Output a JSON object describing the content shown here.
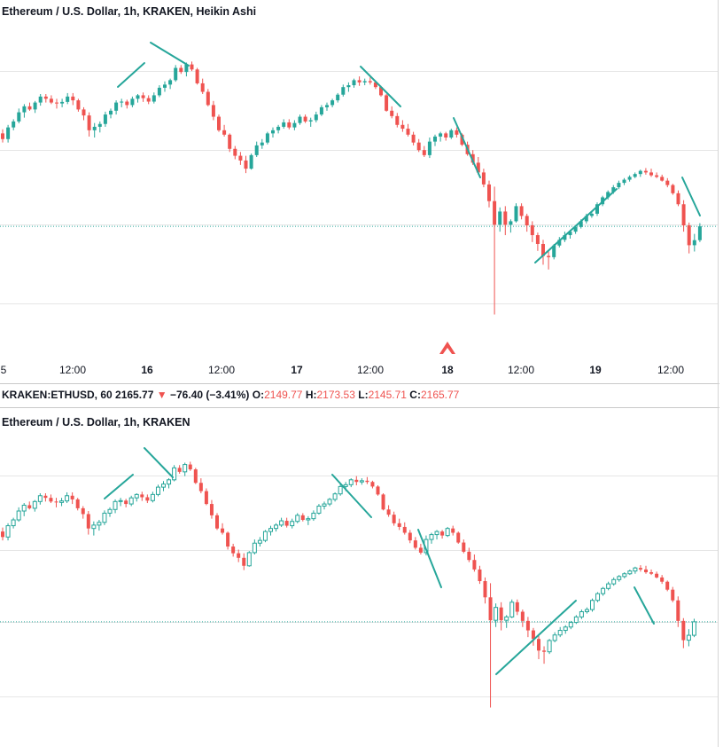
{
  "top_title": "Ethereum / U.S. Dollar, 1h, KRAKEN, Heikin Ashi",
  "bottom_title": "Ethereum / U.S. Dollar, 1h, KRAKEN",
  "ohlc": {
    "symbol": "KRAKEN:ETHUSD, 60",
    "last": "2165.77",
    "arrow": "▼",
    "change": "−76.40 (−3.41%)",
    "o_label": "O:",
    "o": "2149.77",
    "h_label": "H:",
    "h": "2173.53",
    "l_label": "L:",
    "l": "2145.71",
    "c_label": "C:",
    "c": "2165.77"
  },
  "time_axis": [
    {
      "label": "5",
      "bold": false
    },
    {
      "label": "12:00",
      "bold": false
    },
    {
      "label": "16",
      "bold": true
    },
    {
      "label": "12:00",
      "bold": false
    },
    {
      "label": "17",
      "bold": true
    },
    {
      "label": "12:00",
      "bold": false
    },
    {
      "label": "18",
      "bold": true
    },
    {
      "label": "12:00",
      "bold": false
    },
    {
      "label": "19",
      "bold": true
    },
    {
      "label": "12:00",
      "bold": false
    }
  ],
  "colors": {
    "up_top": "#26a69a",
    "down": "#ef5350",
    "up_bottom_fill": "#ffffff",
    "up_bottom_stroke": "#26a69a",
    "trend_line": "#26a69a",
    "grid": "#e6e6e6",
    "price_line": "#26a69a",
    "marker": "#ef5350"
  },
  "chart_data": [
    {
      "type": "candlestick",
      "title": "Ethereum / U.S. Dollar, 1h, KRAKEN, Heikin Ashi",
      "y_axis": "price (relative, no scale printed)",
      "ylim": [
        0,
        100
      ],
      "x_axis_ticks": [
        "5",
        "12:00",
        "16",
        "12:00",
        "17",
        "12:00",
        "18",
        "12:00",
        "19",
        "12:00"
      ],
      "candles_ohlc": [
        [
          67.5,
          68.8,
          64.6,
          65.7
        ],
        [
          65.7,
          70.2,
          64.6,
          69.4
        ],
        [
          69.4,
          72.0,
          68.5,
          71.3
        ],
        [
          71.3,
          75.4,
          70.7,
          74.2
        ],
        [
          74.2,
          76.8,
          72.5,
          76.1
        ],
        [
          76.1,
          77.3,
          74.7,
          75.1
        ],
        [
          75.1,
          77.8,
          74.0,
          77.3
        ],
        [
          77.3,
          80.0,
          76.3,
          79.2
        ],
        [
          79.2,
          80.0,
          77.3,
          78.5
        ],
        [
          78.5,
          79.6,
          76.8,
          77.3
        ],
        [
          77.3,
          78.5,
          75.4,
          77.0
        ],
        [
          77.0,
          78.5,
          75.8,
          77.5
        ],
        [
          77.5,
          80.3,
          76.8,
          79.2
        ],
        [
          79.2,
          80.3,
          76.5,
          78.0
        ],
        [
          78.0,
          78.5,
          74.4,
          75.1
        ],
        [
          75.1,
          75.8,
          71.7,
          73.2
        ],
        [
          73.2,
          74.2,
          66.5,
          68.5
        ],
        [
          68.5,
          70.8,
          66.2,
          69.6
        ],
        [
          69.6,
          71.3,
          67.8,
          70.5
        ],
        [
          70.5,
          74.4,
          69.6,
          73.5
        ],
        [
          73.5,
          75.4,
          72.3,
          74.7
        ],
        [
          74.7,
          78.0,
          73.5,
          77.3
        ],
        [
          77.3,
          78.5,
          75.8,
          77.6
        ],
        [
          77.6,
          78.2,
          75.4,
          76.5
        ],
        [
          76.5,
          79.2,
          75.8,
          78.5
        ],
        [
          78.5,
          80.0,
          77.3,
          79.6
        ],
        [
          79.6,
          80.5,
          77.5,
          78.7
        ],
        [
          78.7,
          79.6,
          76.8,
          77.6
        ],
        [
          77.6,
          80.5,
          77.0,
          79.6
        ],
        [
          79.6,
          82.8,
          79.0,
          82.0
        ],
        [
          82.0,
          84.0,
          80.7,
          83.0
        ],
        [
          83.0,
          84.9,
          81.6,
          84.4
        ],
        [
          84.4,
          89.2,
          83.9,
          88.3
        ],
        [
          88.3,
          89.2,
          86.4,
          87.0
        ],
        [
          87.0,
          90.0,
          85.6,
          89.4
        ],
        [
          89.4,
          90.3,
          87.3,
          87.8
        ],
        [
          87.8,
          88.3,
          83.0,
          83.4
        ],
        [
          83.4,
          84.9,
          80.0,
          80.7
        ],
        [
          80.7,
          81.6,
          76.1,
          76.5
        ],
        [
          76.5,
          77.8,
          71.7,
          72.8
        ],
        [
          72.8,
          73.5,
          68.0,
          68.5
        ],
        [
          68.5,
          70.2,
          66.5,
          67.1
        ],
        [
          67.1,
          67.5,
          61.6,
          62.6
        ],
        [
          62.6,
          63.5,
          59.3,
          60.4
        ],
        [
          60.4,
          61.6,
          57.5,
          58.9
        ],
        [
          58.9,
          60.4,
          54.9,
          56.3
        ],
        [
          56.3,
          61.1,
          56.0,
          60.6
        ],
        [
          60.6,
          64.9,
          60.0,
          63.7
        ],
        [
          63.7,
          65.7,
          62.6,
          64.6
        ],
        [
          64.6,
          68.0,
          64.0,
          67.5
        ],
        [
          67.5,
          69.4,
          66.2,
          68.5
        ],
        [
          68.5,
          70.2,
          67.5,
          69.6
        ],
        [
          69.6,
          72.0,
          69.0,
          71.0
        ],
        [
          71.0,
          72.0,
          68.8,
          69.4
        ],
        [
          69.4,
          71.7,
          68.5,
          70.8
        ],
        [
          70.8,
          73.5,
          70.2,
          72.8
        ],
        [
          72.8,
          73.5,
          70.8,
          71.3
        ],
        [
          71.3,
          72.5,
          69.6,
          71.7
        ],
        [
          71.7,
          74.4,
          71.0,
          73.5
        ],
        [
          73.5,
          76.5,
          73.0,
          75.8
        ],
        [
          75.8,
          77.3,
          74.7,
          76.5
        ],
        [
          76.5,
          78.5,
          75.8,
          78.0
        ],
        [
          78.0,
          80.3,
          77.3,
          79.8
        ],
        [
          79.8,
          83.0,
          79.2,
          82.2
        ],
        [
          82.2,
          83.7,
          80.7,
          82.8
        ],
        [
          82.8,
          84.9,
          82.0,
          84.4
        ],
        [
          84.4,
          85.6,
          82.6,
          83.7
        ],
        [
          83.7,
          84.9,
          82.8,
          84.1
        ],
        [
          84.1,
          85.3,
          83.0,
          83.7
        ],
        [
          83.7,
          84.1,
          81.6,
          82.2
        ],
        [
          82.2,
          82.6,
          79.2,
          79.6
        ],
        [
          79.6,
          80.0,
          74.4,
          74.7
        ],
        [
          74.7,
          76.1,
          72.3,
          73.0
        ],
        [
          73.0,
          74.0,
          69.4,
          70.2
        ],
        [
          70.2,
          71.7,
          68.0,
          69.0
        ],
        [
          69.0,
          70.5,
          66.5,
          67.1
        ],
        [
          67.1,
          68.0,
          63.7,
          64.6
        ],
        [
          64.6,
          65.7,
          61.6,
          62.2
        ],
        [
          62.2,
          63.5,
          60.0,
          60.6
        ],
        [
          60.6,
          66.2,
          59.7,
          64.9
        ],
        [
          64.9,
          67.1,
          63.5,
          66.5
        ],
        [
          66.5,
          68.0,
          64.9,
          67.5
        ],
        [
          67.5,
          68.0,
          65.2,
          66.2
        ],
        [
          66.2,
          69.0,
          65.7,
          68.5
        ],
        [
          68.5,
          69.4,
          66.2,
          67.1
        ],
        [
          67.1,
          67.5,
          63.5,
          63.9
        ],
        [
          63.9,
          64.9,
          60.4,
          60.9
        ],
        [
          60.9,
          62.2,
          57.5,
          58.2
        ],
        [
          58.2,
          60.0,
          54.4,
          55.1
        ],
        [
          55.1,
          56.3,
          50.4,
          51.3
        ],
        [
          51.3,
          52.5,
          44.0,
          46.0
        ],
        [
          46.0,
          50.6,
          10.0,
          38.5
        ],
        [
          38.5,
          44.0,
          36.3,
          42.7
        ],
        [
          42.7,
          44.4,
          35.2,
          38.5
        ],
        [
          38.5,
          40.2,
          36.0,
          39.6
        ],
        [
          39.6,
          45.3,
          39.2,
          44.4
        ],
        [
          44.4,
          45.3,
          40.2,
          41.3
        ],
        [
          41.3,
          42.0,
          36.3,
          38.3
        ],
        [
          38.3,
          39.6,
          33.0,
          35.2
        ],
        [
          35.2,
          36.0,
          30.2,
          32.4
        ],
        [
          32.4,
          33.7,
          25.8,
          28.6
        ],
        [
          28.6,
          30.0,
          24.3,
          28.2
        ],
        [
          28.2,
          32.4,
          27.5,
          31.9
        ],
        [
          31.9,
          34.6,
          31.3,
          33.7
        ],
        [
          33.7,
          36.3,
          33.0,
          35.2
        ],
        [
          35.2,
          36.9,
          34.1,
          36.3
        ],
        [
          36.3,
          38.3,
          35.6,
          37.8
        ],
        [
          37.8,
          40.2,
          37.3,
          39.6
        ],
        [
          39.6,
          42.0,
          38.9,
          41.3
        ],
        [
          41.3,
          42.7,
          40.7,
          42.0
        ],
        [
          42.0,
          45.6,
          41.3,
          45.0
        ],
        [
          45.0,
          47.7,
          44.4,
          47.2
        ],
        [
          47.2,
          49.4,
          46.5,
          48.9
        ],
        [
          48.9,
          51.1,
          48.3,
          50.4
        ],
        [
          50.4,
          52.5,
          49.8,
          51.8
        ],
        [
          51.8,
          53.3,
          51.1,
          52.8
        ],
        [
          52.8,
          54.2,
          52.2,
          53.7
        ],
        [
          53.7,
          55.1,
          53.3,
          54.6
        ],
        [
          54.6,
          56.0,
          53.7,
          55.6
        ],
        [
          55.6,
          56.5,
          54.4,
          55.1
        ],
        [
          55.1,
          56.3,
          53.7,
          54.2
        ],
        [
          54.2,
          55.1,
          53.3,
          53.7
        ],
        [
          53.7,
          54.4,
          52.2,
          52.5
        ],
        [
          52.5,
          53.3,
          50.4,
          51.1
        ],
        [
          51.1,
          51.5,
          48.0,
          48.5
        ],
        [
          48.5,
          49.4,
          44.4,
          45.0
        ],
        [
          45.0,
          46.3,
          36.3,
          38.3
        ],
        [
          38.3,
          39.2,
          29.4,
          32.0
        ],
        [
          32.0,
          35.6,
          30.0,
          33.6
        ],
        [
          33.6,
          39.0,
          33.0,
          38.0
        ]
      ],
      "trend_lines": "7 short teal guide lines over the price action",
      "marker": "red up arrow at the 18 boundary"
    },
    {
      "type": "candlestick",
      "title": "Ethereum / U.S. Dollar, 1h, KRAKEN",
      "y_axis": "price (relative, no scale printed)",
      "ylim": [
        0,
        100
      ],
      "candles_ohlc": "same session as the top chart, standard candles",
      "trend_lines": "6 short teal guide lines over the price action"
    }
  ]
}
